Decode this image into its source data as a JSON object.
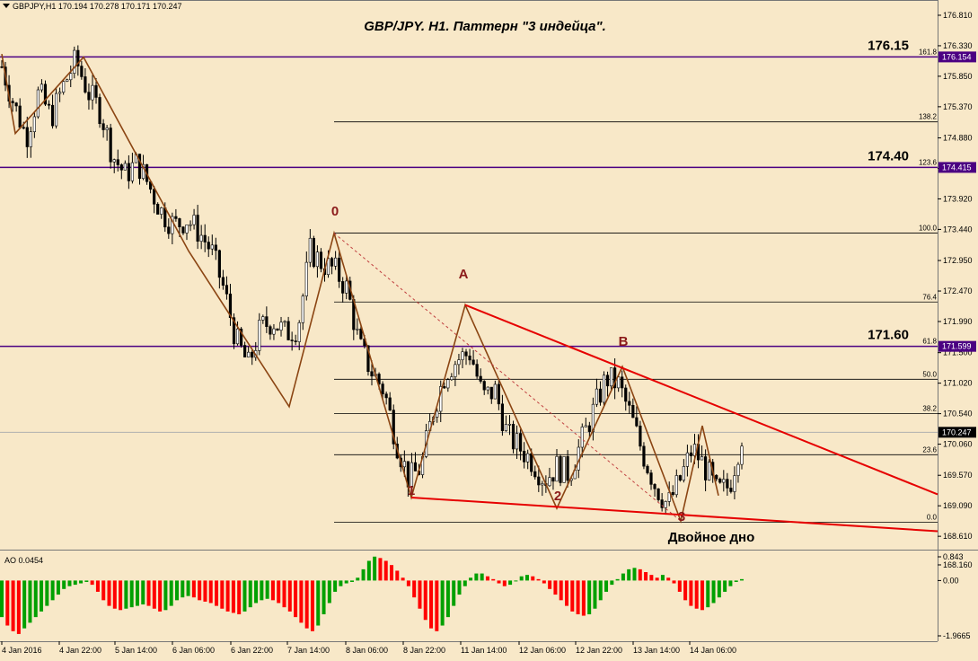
{
  "symbol_info": "GBPJPY,H1  170.194 170.278 170.171 170.247",
  "title": "GBP/JPY. H1. Паттерн \"3 индейца\".",
  "colors": {
    "background": "#f8e8c8",
    "bull_candle": "#000000",
    "bear_candle": "#000000",
    "fib_line": "#000000",
    "level_line": "#4b0082",
    "trend_line": "#e60000",
    "zigzag": "#8b4513",
    "point_label": "#8b1a1a",
    "ao_up": "#00a000",
    "ao_down": "#ff0000"
  },
  "chart_data": [
    {
      "type": "candlestick",
      "title": "GBP/JPY. H1. Паттерн \"3 индейца\".",
      "ylim": [
        168.4,
        177.05
      ],
      "price_ticks": [
        "176.810",
        "176.330",
        "175.850",
        "175.370",
        "174.880",
        "174.400",
        "173.920",
        "173.440",
        "172.950",
        "172.470",
        "171.990",
        "171.500",
        "171.020",
        "170.540",
        "170.060",
        "169.570",
        "169.090",
        "168.610",
        "168.160"
      ],
      "x_ticks": [
        "4 Jan 2016",
        "4 Jan 22:00",
        "5 Jan 14:00",
        "6 Jan 06:00",
        "6 Jan 22:00",
        "7 Jan 14:00",
        "8 Jan 06:00",
        "8 Jan 22:00",
        "11 Jan 14:00",
        "12 Jan 06:00",
        "12 Jan 22:00",
        "13 Jan 14:00",
        "14 Jan 06:00"
      ],
      "close_path": [
        176.0,
        175.4,
        174.9,
        175.6,
        175.2,
        175.7,
        176.1,
        175.6,
        175.3,
        174.6,
        174.3,
        174.5,
        174.1,
        173.7,
        173.5,
        173.6,
        173.4,
        173.1,
        172.5,
        171.7,
        171.3,
        171.9,
        172.0,
        171.8,
        171.9,
        173.1,
        172.9,
        172.8,
        172.5,
        171.6,
        171.2,
        170.9,
        170.1,
        169.5,
        169.7,
        170.6,
        171.2,
        171.4,
        171.5,
        170.8,
        170.9,
        170.2,
        170.0,
        169.8,
        169.5,
        169.7,
        169.6,
        170.1,
        170.6,
        171.1,
        171.0,
        170.5,
        169.9,
        169.4,
        169.1,
        169.5,
        170.0,
        169.7,
        169.3,
        169.4,
        170.2
      ],
      "last_price": "170.247",
      "levels": [
        {
          "label": "176.15",
          "tag": "176.154",
          "value": 176.154
        },
        {
          "label": "174.40",
          "tag": "174.415",
          "value": 174.415
        },
        {
          "label": "171.60",
          "tag": "171.599",
          "value": 171.599
        }
      ],
      "fibonacci": [
        {
          "label": "161.8",
          "value": 176.154
        },
        {
          "label": "138.2",
          "value": 175.132
        },
        {
          "label": "123.6",
          "value": 174.415
        },
        {
          "label": "100.0",
          "value": 173.383
        },
        {
          "label": "76.4",
          "value": 172.297
        },
        {
          "label": "61.8",
          "value": 171.599
        },
        {
          "label": "50.0",
          "value": 171.081
        },
        {
          "label": "38.2",
          "value": 170.541
        },
        {
          "label": "23.6",
          "value": 169.894
        },
        {
          "label": "0.0",
          "value": 168.829
        }
      ],
      "wave_points": [
        {
          "label": "0",
          "x_frac": 0.0,
          "price": 173.38
        },
        {
          "label": "A",
          "price": 172.25
        },
        {
          "label": "B",
          "price": 171.28
        },
        {
          "label": "1",
          "price": 169.22
        },
        {
          "label": "2",
          "price": 169.05
        },
        {
          "label": "3",
          "price": 168.85
        }
      ],
      "annotation": "Двойное дно"
    },
    {
      "type": "bar",
      "name": "AO 0.0454",
      "ylim": [
        -1.9665,
        0.843
      ],
      "tick_labels": [
        "0.843",
        "0.00",
        "-1.9665"
      ],
      "values": [
        -1.3,
        -1.6,
        -1.8,
        -1.9,
        -1.7,
        -1.5,
        -1.3,
        -1.1,
        -0.9,
        -0.7,
        -0.5,
        -0.3,
        -0.2,
        -0.15,
        -0.1,
        -0.05,
        -0.15,
        -0.4,
        -0.7,
        -0.9,
        -1.0,
        -1.05,
        -1.0,
        -0.95,
        -0.9,
        -0.85,
        -0.9,
        -1.0,
        -1.1,
        -1.05,
        -0.9,
        -0.7,
        -0.6,
        -0.55,
        -0.6,
        -0.7,
        -0.75,
        -0.8,
        -0.9,
        -1.0,
        -1.1,
        -1.15,
        -1.2,
        -1.1,
        -0.95,
        -0.8,
        -0.7,
        -0.65,
        -0.7,
        -0.8,
        -0.95,
        -1.1,
        -1.3,
        -1.5,
        -1.7,
        -1.8,
        -1.6,
        -1.2,
        -0.8,
        -0.4,
        -0.2,
        -0.1,
        -0.05,
        0.1,
        0.4,
        0.7,
        0.85,
        0.8,
        0.7,
        0.55,
        0.35,
        0.1,
        -0.2,
        -0.6,
        -1.0,
        -1.4,
        -1.7,
        -1.8,
        -1.6,
        -1.3,
        -0.9,
        -0.5,
        -0.2,
        0.1,
        0.25,
        0.25,
        0.15,
        0.05,
        -0.1,
        -0.2,
        -0.15,
        0.0,
        0.15,
        0.2,
        0.15,
        0.05,
        -0.1,
        -0.3,
        -0.5,
        -0.7,
        -0.9,
        -1.1,
        -1.2,
        -1.25,
        -1.2,
        -1.0,
        -0.7,
        -0.4,
        -0.15,
        0.05,
        0.25,
        0.4,
        0.45,
        0.4,
        0.3,
        0.2,
        0.1,
        0.2,
        0.1,
        -0.1,
        -0.4,
        -0.7,
        -0.9,
        -1.0,
        -1.05,
        -0.95,
        -0.8,
        -0.6,
        -0.4,
        -0.2,
        -0.05,
        0.05
      ]
    }
  ]
}
